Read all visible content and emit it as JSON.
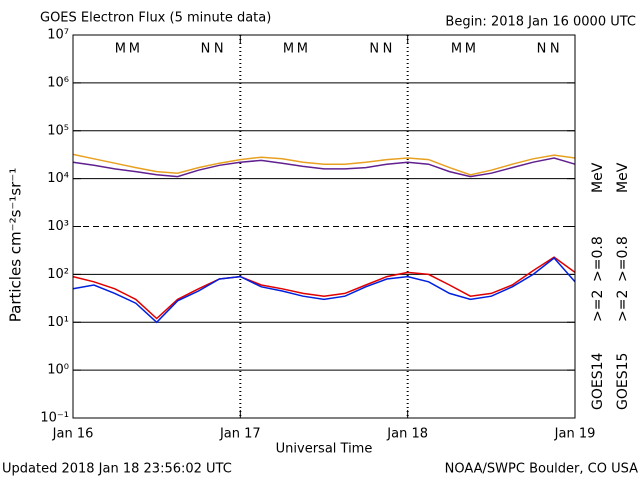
{
  "chart_data": {
    "type": "line",
    "title": "GOES Electron Flux (5 minute data)",
    "subtitle": "Begin: 2018 Jan 16 0000 UTC",
    "xlabel": "Universal Time",
    "ylabel": "Particles cm⁻²s⁻¹sr⁻¹",
    "footer_left": "Updated 2018 Jan 18 23:56:02 UTC",
    "footer_right": "NOAA/SWPC Boulder, CO USA",
    "x": [
      0,
      3,
      6,
      9,
      12,
      15,
      18,
      21,
      24,
      27,
      30,
      33,
      36,
      39,
      42,
      45,
      48,
      51,
      54,
      57,
      60,
      63,
      66,
      69,
      72
    ],
    "xlim": [
      0,
      72
    ],
    "xticks": [
      {
        "value": 0,
        "label": "Jan 16"
      },
      {
        "value": 24,
        "label": "Jan 17"
      },
      {
        "value": 48,
        "label": "Jan 18"
      },
      {
        "value": 72,
        "label": "Jan 19"
      }
    ],
    "ylim": [
      0.1,
      10000000
    ],
    "log_y": true,
    "yticks": [
      {
        "value": 0.1,
        "label": "10⁻¹"
      },
      {
        "value": 1,
        "label": "10⁰"
      },
      {
        "value": 10,
        "label": "10¹"
      },
      {
        "value": 100,
        "label": "10²"
      },
      {
        "value": 1000,
        "label": "10³"
      },
      {
        "value": 10000,
        "label": "10⁴"
      },
      {
        "value": 100000,
        "label": "10⁵"
      },
      {
        "value": 1000000,
        "label": "10⁶"
      },
      {
        "value": 10000000,
        "label": "10⁷"
      }
    ],
    "grid": true,
    "threshold": 1000,
    "legend": {
      "groups": [
        "GOES14",
        "GOES15"
      ],
      "unit": "MeV"
    },
    "series": [
      {
        "name": ">=2",
        "color": "#e00000",
        "values": [
          90,
          70,
          50,
          30,
          12,
          30,
          50,
          80,
          90,
          60,
          50,
          40,
          35,
          40,
          60,
          90,
          110,
          100,
          60,
          35,
          40,
          60,
          120,
          230,
          110
        ]
      },
      {
        "name": ">=0.8",
        "color": "#e8a020",
        "values": [
          32000,
          26000,
          21000,
          17000,
          14000,
          13000,
          17000,
          21000,
          25000,
          28000,
          26000,
          22000,
          20000,
          20000,
          22000,
          25000,
          27000,
          25000,
          17000,
          12000,
          15000,
          20000,
          26000,
          31000,
          27000
        ]
      },
      {
        "name": ">=2",
        "color": "#0020e0",
        "values": [
          50,
          60,
          40,
          25,
          10,
          28,
          45,
          80,
          90,
          55,
          45,
          35,
          30,
          35,
          55,
          80,
          90,
          70,
          40,
          30,
          35,
          55,
          100,
          220,
          70
        ]
      },
      {
        "name": ">=0.8",
        "color": "#602090",
        "values": [
          22000,
          19000,
          16000,
          14000,
          12000,
          11000,
          15000,
          19000,
          22000,
          24000,
          21000,
          18000,
          16000,
          16000,
          17000,
          20000,
          22000,
          20000,
          14000,
          11000,
          13000,
          17000,
          22000,
          27000,
          20000
        ]
      }
    ],
    "annotations": [
      {
        "text": "M",
        "x": 6.8,
        "color": "#0020e0"
      },
      {
        "text": "M",
        "x": 8.8,
        "color": "#e00000"
      },
      {
        "text": "N",
        "x": 19.0,
        "color": "#0020e0"
      },
      {
        "text": "N",
        "x": 20.9,
        "color": "#e00000"
      },
      {
        "text": "M",
        "x": 30.9,
        "color": "#0020e0"
      },
      {
        "text": "M",
        "x": 32.9,
        "color": "#e00000"
      },
      {
        "text": "N",
        "x": 43.2,
        "color": "#0020e0"
      },
      {
        "text": "N",
        "x": 45.1,
        "color": "#e00000"
      },
      {
        "text": "M",
        "x": 55.0,
        "color": "#0020e0"
      },
      {
        "text": "M",
        "x": 57.0,
        "color": "#e00000"
      },
      {
        "text": "N",
        "x": 67.2,
        "color": "#0020e0"
      },
      {
        "text": "N",
        "x": 69.1,
        "color": "#e00000"
      }
    ]
  }
}
